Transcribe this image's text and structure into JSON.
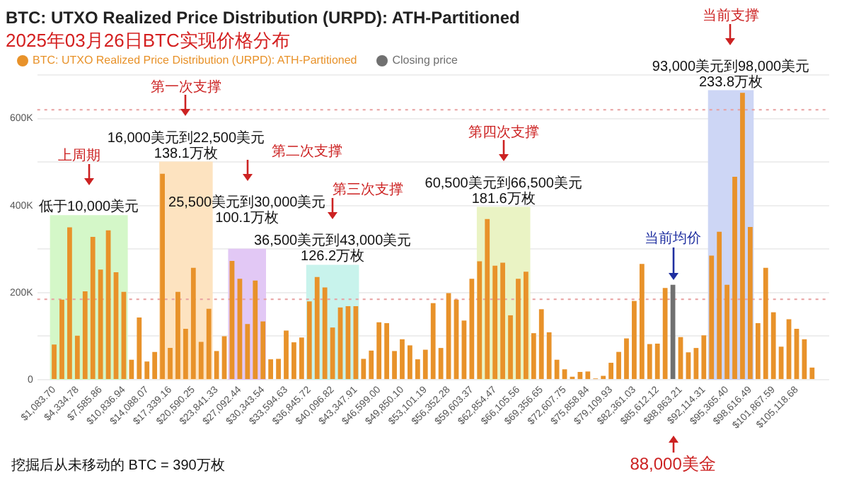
{
  "chart_data": {
    "type": "bar",
    "title": "BTC: UTXO Realized Price Distribution (URPD): ATH-Partitioned",
    "subtitle": "2025年03月26日BTC实现价格分布",
    "x": [
      1084,
      2167,
      3251,
      4335,
      5419,
      6502,
      7586,
      8670,
      9753,
      10837,
      11921,
      13004,
      14088,
      15172,
      16256,
      17339,
      18423,
      19507,
      20590,
      21674,
      22758,
      23841,
      24925,
      26009,
      27093,
      28176,
      29260,
      30344,
      31427,
      32511,
      33595,
      34678,
      35762,
      36846,
      37930,
      39013,
      40097,
      41181,
      42264,
      43348,
      44432,
      45515,
      46599,
      47683,
      48767,
      49850,
      50934,
      52018,
      53101,
      54185,
      55269,
      56352,
      57436,
      58520,
      59604,
      60687,
      61771,
      62855,
      63938,
      65022,
      66106,
      67189,
      68273,
      69357,
      70440,
      71524,
      72608,
      73692,
      74775,
      75859,
      76943,
      78026,
      79110,
      80194,
      81277,
      82361,
      83445,
      84528,
      85612,
      86696,
      87780,
      88863,
      89947,
      91031,
      92115,
      93198,
      94282,
      95366,
      96449,
      97533,
      98617,
      99700,
      100784,
      101868,
      102952,
      104035,
      105119,
      106203,
      107286
    ],
    "series": [
      {
        "name": "BTC: UTXO Realized Price Distribution (URPD): ATH-Partitioned",
        "color": "#e8922a",
        "values": [
          81000,
          184000,
          350000,
          101000,
          203000,
          328000,
          253000,
          343000,
          247000,
          202000,
          46000,
          143000,
          42000,
          64000,
          473000,
          73000,
          202000,
          117000,
          257000,
          87000,
          163000,
          66000,
          100000,
          273000,
          232000,
          128000,
          228000,
          134000,
          47000,
          48000,
          113000,
          86000,
          97000,
          180000,
          236000,
          212000,
          120000,
          166000,
          169000,
          169000,
          48000,
          67000,
          132000,
          130000,
          66000,
          93000,
          79000,
          47000,
          69000,
          176000,
          73000,
          199000,
          184000,
          136000,
          232000,
          272000,
          369000,
          262000,
          269000,
          148000,
          232000,
          248000,
          107000,
          162000,
          109000,
          46000,
          24000,
          7000,
          18000,
          19000,
          3000,
          9000,
          39000,
          64000,
          95000,
          181000,
          266000,
          82000,
          83000,
          211000,
          null,
          98000,
          63000,
          73000,
          102000,
          285000,
          340000,
          218000,
          466000,
          659000,
          351000,
          130000,
          257000,
          155000,
          76000,
          139000,
          117000,
          93000,
          28000
        ]
      },
      {
        "name": "Closing price",
        "color": "#707070",
        "x": [
          87780
        ],
        "values": [
          218000
        ]
      }
    ],
    "xlim": [
      400,
      108000
    ],
    "xticks": [
      {
        "value": 1083.7,
        "label": "$1,083.70"
      },
      {
        "value": 4334.78,
        "label": "$4,334.78"
      },
      {
        "value": 7585.86,
        "label": "$7,585.86"
      },
      {
        "value": 10836.94,
        "label": "$10,836.94"
      },
      {
        "value": 14088.07,
        "label": "$14,088.07"
      },
      {
        "value": 17339.16,
        "label": "$17,339.16"
      },
      {
        "value": 20590.25,
        "label": "$20,590.25"
      },
      {
        "value": 23841.33,
        "label": "$23,841.33"
      },
      {
        "value": 27092.44,
        "label": "$27,092.44"
      },
      {
        "value": 30343.54,
        "label": "$30,343.54"
      },
      {
        "value": 33594.63,
        "label": "$33,594.63"
      },
      {
        "value": 36845.72,
        "label": "$36,845.72"
      },
      {
        "value": 40096.82,
        "label": "$40,096.82"
      },
      {
        "value": 43347.91,
        "label": "$43,347.91"
      },
      {
        "value": 46599.0,
        "label": "$46,599.00"
      },
      {
        "value": 49850.1,
        "label": "$49,850.10"
      },
      {
        "value": 53101.19,
        "label": "$53,101.19"
      },
      {
        "value": 56352.28,
        "label": "$56,352.28"
      },
      {
        "value": 59603.37,
        "label": "$59,603.37"
      },
      {
        "value": 62854.47,
        "label": "$62,854.47"
      },
      {
        "value": 66105.56,
        "label": "$66,105.56"
      },
      {
        "value": 69356.65,
        "label": "$69,356.65"
      },
      {
        "value": 72607.75,
        "label": "$72,607.75"
      },
      {
        "value": 75858.84,
        "label": "$75,858.84"
      },
      {
        "value": 79109.93,
        "label": "$79,109.93"
      },
      {
        "value": 82361.03,
        "label": "$82,361.03"
      },
      {
        "value": 85612.12,
        "label": "$85,612.12"
      },
      {
        "value": 88863.21,
        "label": "$88,863.21"
      },
      {
        "value": 92114.31,
        "label": "$92,114.31"
      },
      {
        "value": 95365.4,
        "label": "$95,365.40"
      },
      {
        "value": 98616.49,
        "label": "$98,616.49"
      },
      {
        "value": 101867.59,
        "label": "$101,867.59"
      },
      {
        "value": 105118.68,
        "label": "$105,118.68"
      }
    ],
    "ylim": [
      0,
      700000
    ],
    "yticks": [
      0,
      {
        "value": 100000,
        "label": null
      },
      {
        "value": 200000,
        "label": "200K"
      },
      {
        "value": 300000,
        "label": null
      },
      {
        "value": 400000,
        "label": "400K"
      },
      {
        "value": 500000,
        "label": null
      },
      {
        "value": 600000,
        "label": "600K"
      },
      {
        "value": 700000,
        "label": null
      }
    ],
    "grid": "y",
    "legend": "top left",
    "ref_lines": [
      {
        "axis": "y",
        "value": 620000,
        "color": "#e8a0a0",
        "line_style": "dotted"
      },
      {
        "axis": "y",
        "value": 185000,
        "color": "#e8a0a0",
        "line_style": "dotted"
      }
    ],
    "bands": [
      {
        "axis": "x",
        "from": 500,
        "to": 11400,
        "label": "低于10,000美元",
        "color": "#d4f7c8"
      },
      {
        "axis": "x",
        "from": 15800,
        "to": 23300,
        "label": "16,000美元到22,500美元\n138.1万枚",
        "color": "#fde3c0"
      },
      {
        "axis": "x",
        "from": 25460,
        "to": 30770,
        "label": "25,500美元到30,000美元\n100.1万枚",
        "color": "#e2c8f5"
      },
      {
        "axis": "x",
        "from": 36400,
        "to": 43800,
        "label": "36,500美元到43,000美元\n126.2万枚",
        "color": "#c8f3ec"
      },
      {
        "axis": "x",
        "from": 60300,
        "to": 67800,
        "label": "60,500美元到66,500美元\n181.6万枚",
        "color": "#eaf3c4"
      },
      {
        "axis": "x",
        "from": 92700,
        "to": 99100,
        "label": "93,000美元到98,000美元\n233.8万枚",
        "color": "#cdd6f5"
      }
    ],
    "annotations": [
      "上周期",
      "第一次支撑",
      "第二次支撑",
      "第三次支撑",
      "第四次支撑",
      "当前支撑",
      {
        "text": "当前均价",
        "x": 87780,
        "y": 218000
      },
      "挖掘后从未移动的 BTC = 390万枚",
      "88,000美金"
    ]
  }
}
